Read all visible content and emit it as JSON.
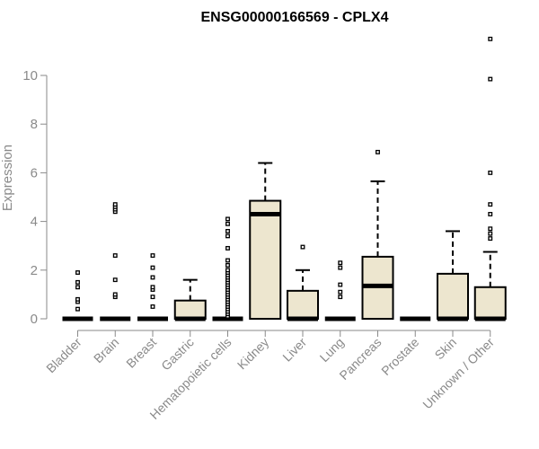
{
  "chart_data": {
    "type": "boxplot",
    "title": "ENSG00000166569 - CPLX4",
    "xlabel": "",
    "ylabel": "Expression",
    "ylim": [
      0,
      11.5
    ],
    "yticks": [
      0,
      2,
      4,
      6,
      8,
      10
    ],
    "box_fill": "#ede6cf",
    "box_stroke": "#000000",
    "axis_color": "#8a8a8a",
    "categories": [
      "Bladder",
      "Brain",
      "Breast",
      "Gastric",
      "Hematopoietic cells",
      "Kidney",
      "Liver",
      "Lung",
      "Pancreas",
      "Prostate",
      "Skin",
      "Unknown / Other"
    ],
    "boxes": [
      {
        "q1": 0,
        "median": 0,
        "q3": 0,
        "whisker_low": 0,
        "whisker_high": 0,
        "outliers": [
          0.4,
          0.7,
          0.8,
          1.3,
          1.5,
          1.9
        ]
      },
      {
        "q1": 0,
        "median": 0,
        "q3": 0,
        "whisker_low": 0,
        "whisker_high": 0,
        "outliers": [
          0.9,
          1.0,
          1.6,
          2.6,
          4.4,
          4.5,
          4.6,
          4.7
        ]
      },
      {
        "q1": 0,
        "median": 0,
        "q3": 0,
        "whisker_low": 0,
        "whisker_high": 0,
        "outliers": [
          0.5,
          0.9,
          1.2,
          1.3,
          1.7,
          2.1,
          2.6
        ]
      },
      {
        "q1": 0,
        "median": 0,
        "q3": 0.75,
        "whisker_low": 0,
        "whisker_high": 1.6,
        "outliers": []
      },
      {
        "q1": 0,
        "median": 0,
        "q3": 0,
        "whisker_low": 0,
        "whisker_high": 0,
        "outliers": [
          0.1,
          0.2,
          0.3,
          0.4,
          0.5,
          0.6,
          0.7,
          0.8,
          0.9,
          1.0,
          1.1,
          1.2,
          1.3,
          1.4,
          1.5,
          1.6,
          1.7,
          1.8,
          1.9,
          2.0,
          2.2,
          2.4,
          2.9,
          3.4,
          3.6,
          3.9,
          4.1
        ]
      },
      {
        "q1": 0,
        "median": 4.3,
        "q3": 4.85,
        "whisker_low": 0,
        "whisker_high": 6.4,
        "outliers": []
      },
      {
        "q1": 0,
        "median": 0,
        "q3": 1.15,
        "whisker_low": 0,
        "whisker_high": 2.0,
        "outliers": [
          2.95
        ]
      },
      {
        "q1": 0,
        "median": 0,
        "q3": 0,
        "whisker_low": 0,
        "whisker_high": 0,
        "outliers": [
          0.9,
          1.1,
          1.4,
          2.1,
          2.3
        ]
      },
      {
        "q1": 0,
        "median": 1.35,
        "q3": 2.55,
        "whisker_low": 0,
        "whisker_high": 5.65,
        "outliers": [
          6.85
        ]
      },
      {
        "q1": 0,
        "median": 0,
        "q3": 0,
        "whisker_low": 0,
        "whisker_high": 0,
        "outliers": []
      },
      {
        "q1": 0,
        "median": 0,
        "q3": 1.85,
        "whisker_low": 0,
        "whisker_high": 3.6,
        "outliers": []
      },
      {
        "q1": 0,
        "median": 0,
        "q3": 1.3,
        "whisker_low": 0,
        "whisker_high": 2.75,
        "outliers": [
          3.3,
          3.5,
          3.7,
          4.3,
          4.7,
          6.0,
          9.85,
          11.5
        ]
      }
    ]
  }
}
